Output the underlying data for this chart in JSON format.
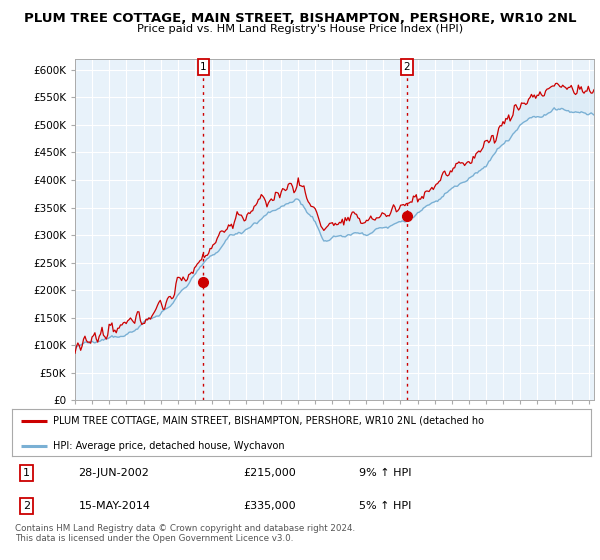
{
  "title1": "PLUM TREE COTTAGE, MAIN STREET, BISHAMPTON, PERSHORE, WR10 2NL",
  "title2": "Price paid vs. HM Land Registry's House Price Index (HPI)",
  "legend_line1": "PLUM TREE COTTAGE, MAIN STREET, BISHAMPTON, PERSHORE, WR10 2NL (detached ho",
  "legend_line2": "HPI: Average price, detached house, Wychavon",
  "annotation1_label": "1",
  "annotation1_date": "28-JUN-2002",
  "annotation1_price": "£215,000",
  "annotation1_hpi": "9% ↑ HPI",
  "annotation2_label": "2",
  "annotation2_date": "15-MAY-2014",
  "annotation2_price": "£335,000",
  "annotation2_hpi": "5% ↑ HPI",
  "footer": "Contains HM Land Registry data © Crown copyright and database right 2024.\nThis data is licensed under the Open Government Licence v3.0.",
  "color_red": "#cc0000",
  "color_blue": "#7ab0d4",
  "color_blue_fill": "#d6e8f5",
  "ylim_min": 0,
  "ylim_max": 620000,
  "yticks": [
    0,
    50000,
    100000,
    150000,
    200000,
    250000,
    300000,
    350000,
    400000,
    450000,
    500000,
    550000,
    600000
  ],
  "ytick_labels": [
    "£0",
    "£50K",
    "£100K",
    "£150K",
    "£200K",
    "£250K",
    "£300K",
    "£350K",
    "£400K",
    "£450K",
    "£500K",
    "£550K",
    "£600K"
  ],
  "sale1_t": 2002.5,
  "sale1_v": 215000,
  "sale2_t": 2014.37,
  "sale2_v": 335000,
  "xmin": 1995,
  "xmax": 2025.3
}
